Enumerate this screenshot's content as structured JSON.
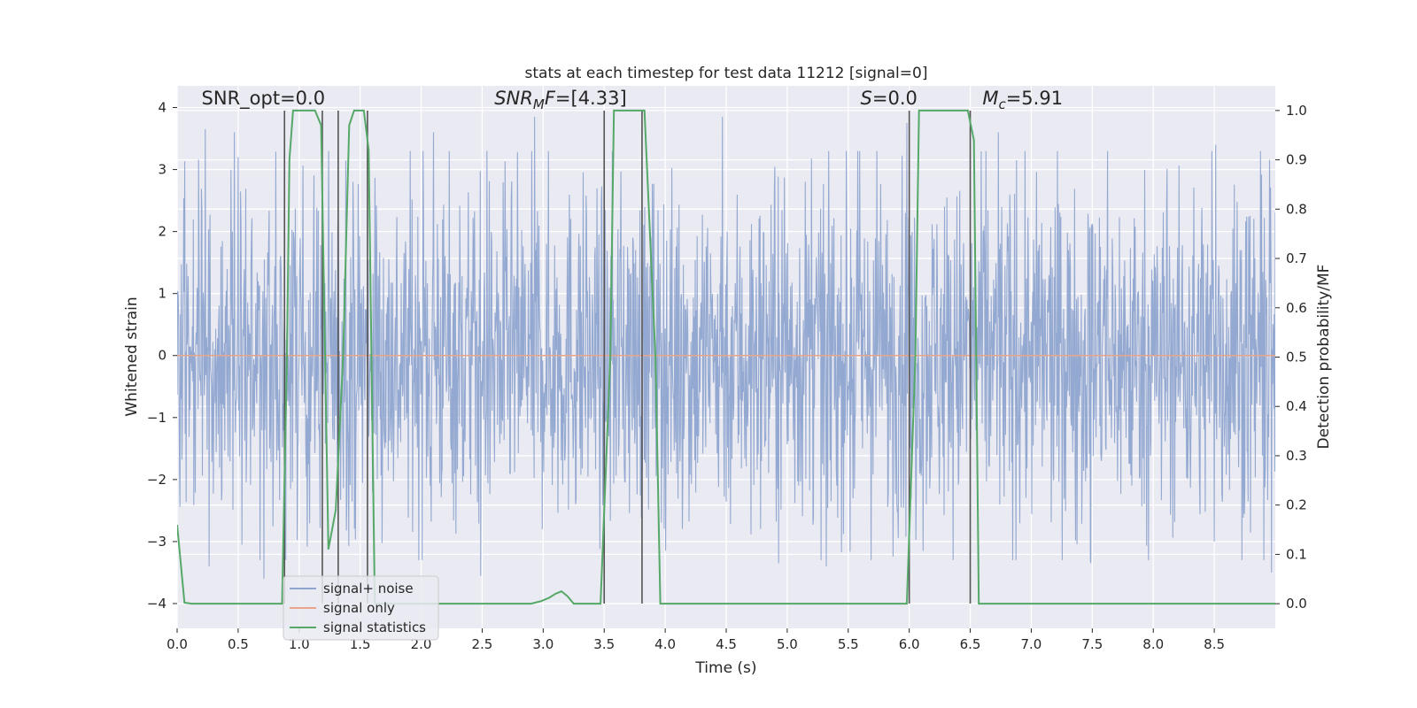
{
  "chart_data": {
    "type": "line",
    "title": "stats at each timestep for test data 11212 [signal=0]",
    "xlabel": "Time (s)",
    "ylabel": "Whitened strain",
    "y2label": "Detection probability/MF",
    "xlim": [
      0.0,
      9.0
    ],
    "ylim": [
      -4.4,
      4.35
    ],
    "y2lim": [
      -0.05,
      1.05
    ],
    "xticks": [
      0.0,
      0.5,
      1.0,
      1.5,
      2.0,
      2.5,
      3.0,
      3.5,
      4.0,
      4.5,
      5.0,
      5.5,
      6.0,
      6.5,
      7.0,
      7.5,
      8.0,
      8.5
    ],
    "xtick_labels": [
      "0.0",
      "0.5",
      "1.0",
      "1.5",
      "2.0",
      "2.5",
      "3.0",
      "3.5",
      "4.0",
      "4.5",
      "5.0",
      "5.5",
      "6.0",
      "6.5",
      "7.0",
      "7.5",
      "8.0",
      "8.5"
    ],
    "yticks": [
      -4,
      -3,
      -2,
      -1,
      0,
      1,
      2,
      3,
      4
    ],
    "ytick_labels": [
      "−4",
      "−3",
      "−2",
      "−1",
      "0",
      "1",
      "2",
      "3",
      "4"
    ],
    "y2ticks": [
      0.0,
      0.1,
      0.2,
      0.3,
      0.4,
      0.5,
      0.6,
      0.7,
      0.8,
      0.9,
      1.0
    ],
    "y2tick_labels": [
      "0.0",
      "0.1",
      "0.2",
      "0.3",
      "0.4",
      "0.5",
      "0.6",
      "0.7",
      "0.8",
      "0.9",
      "1.0"
    ],
    "grid": true,
    "legend_placement": "lower-left",
    "annotations": [
      {
        "id": "snr-opt",
        "parts": [
          {
            "t": "SNR_opt=0.0",
            "style": "normal"
          }
        ],
        "x": 0.2,
        "y": 4.05
      },
      {
        "id": "snr-mf",
        "parts": [
          {
            "t": "SNR",
            "style": "italic"
          },
          {
            "t": "M",
            "style": "italic-sub"
          },
          {
            "t": "F",
            "style": "italic"
          },
          {
            "t": "=[4.33]",
            "style": "normal"
          }
        ],
        "x": 2.6,
        "y": 4.05
      },
      {
        "id": "s-value",
        "parts": [
          {
            "t": "S",
            "style": "italic"
          },
          {
            "t": "=0.0",
            "style": "normal"
          }
        ],
        "x": 5.6,
        "y": 4.05
      },
      {
        "id": "mc-value",
        "parts": [
          {
            "t": "M",
            "style": "italic"
          },
          {
            "t": "c",
            "style": "italic-sub"
          },
          {
            "t": "=5.91",
            "style": "normal"
          }
        ],
        "x": 6.6,
        "y": 4.05
      }
    ],
    "series": [
      {
        "name": "signal+ noise",
        "color": "#8fa5cf",
        "axis": "left",
        "kind": "noise",
        "sample_rate_hz": 256,
        "typical_envelope": [
          -1.8,
          1.9
        ],
        "peak_values": [
          {
            "x": 0.23,
            "y": 3.65
          },
          {
            "x": 0.47,
            "y": 3.6
          },
          {
            "x": 0.26,
            "y": -3.4
          },
          {
            "x": 0.53,
            "y": -3.05
          },
          {
            "x": 0.71,
            "y": -3.6
          },
          {
            "x": 2.1,
            "y": 3.6
          },
          {
            "x": 2.49,
            "y": -3.55
          },
          {
            "x": 2.93,
            "y": 3.85
          },
          {
            "x": 4.47,
            "y": 3.85
          },
          {
            "x": 4.93,
            "y": -3.35
          },
          {
            "x": 5.32,
            "y": -3.4
          },
          {
            "x": 5.98,
            "y": 3.75
          },
          {
            "x": 6.73,
            "y": 3.6
          },
          {
            "x": 7.49,
            "y": -3.35
          },
          {
            "x": 8.51,
            "y": 3.4
          },
          {
            "x": 8.97,
            "y": -3.5
          }
        ]
      },
      {
        "name": "signal only",
        "color": "#e9a58b",
        "axis": "left",
        "x": [
          0.0,
          9.0
        ],
        "y": [
          0.0,
          0.0
        ]
      },
      {
        "name": "signal statistics",
        "color": "#55a868",
        "axis": "right",
        "x": [
          0.0,
          0.06,
          0.12,
          0.8,
          0.86,
          0.9,
          0.92,
          0.95,
          1.13,
          1.18,
          1.24,
          1.3,
          1.36,
          1.41,
          1.45,
          1.53,
          1.57,
          1.62,
          2.9,
          2.98,
          3.05,
          3.1,
          3.15,
          3.2,
          3.25,
          3.47,
          3.55,
          3.58,
          3.83,
          3.92,
          3.96,
          5.98,
          6.05,
          6.08,
          6.48,
          6.53,
          6.57,
          6.62,
          9.0
        ],
        "y": [
          0.16,
          0.002,
          0.0,
          0.0,
          0.0,
          0.5,
          0.9,
          1.0,
          1.0,
          0.97,
          0.11,
          0.19,
          0.5,
          0.97,
          1.0,
          1.0,
          0.92,
          0.0,
          0.0,
          0.005,
          0.012,
          0.02,
          0.025,
          0.015,
          0.0,
          0.0,
          0.5,
          1.0,
          1.0,
          0.5,
          0.0,
          0.0,
          0.5,
          1.0,
          1.0,
          0.94,
          0.0,
          0.0,
          0.0
        ]
      }
    ],
    "vertical_lines": {
      "color": "#555555",
      "x": [
        0.88,
        1.19,
        1.32,
        1.56,
        3.5,
        3.81,
        6.0,
        6.5
      ],
      "y_range": [
        -4.0,
        3.95
      ]
    },
    "legend": [
      {
        "label": "signal+ noise",
        "color": "#8fa5cf"
      },
      {
        "label": "signal only",
        "color": "#e9a58b"
      },
      {
        "label": "signal statistics",
        "color": "#55a868"
      }
    ]
  }
}
